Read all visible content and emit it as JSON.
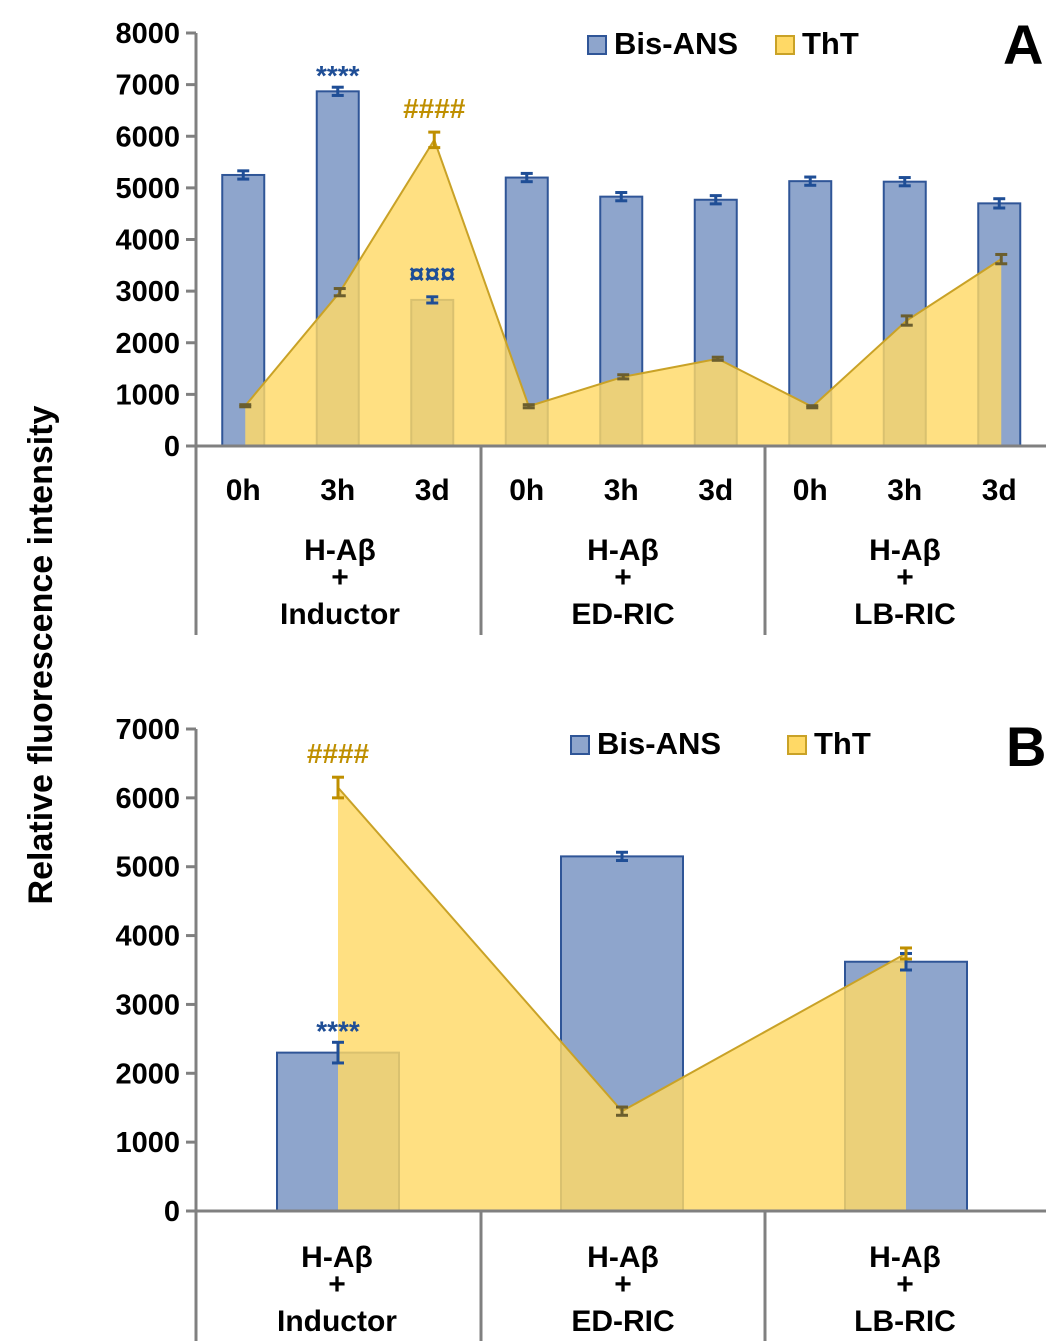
{
  "colors": {
    "bis_ans": "#8EA5CC",
    "bis_ans_edge": "#2F5597",
    "tht": "#FFD966",
    "tht_edge": "#C9A227",
    "overlap": "#8E8E80",
    "err_blue": "#1F4E96",
    "err_gold": "#BF8F00",
    "axis": "#808080"
  },
  "chart_data": [
    {
      "panel_label": "A",
      "type": "bar",
      "ylabel": "Relative fluorescence intensity",
      "ylim": [
        0,
        8000
      ],
      "yticks": [
        "0",
        "1000",
        "2000",
        "3000",
        "4000",
        "5000",
        "6000",
        "7000",
        "8000"
      ],
      "legend": [
        "Bis-ANS",
        "ThT"
      ],
      "legend_position": "top-right",
      "time_labels": [
        "0h",
        "3h",
        "3d",
        "0h",
        "3h",
        "3d",
        "0h",
        "3h",
        "3d"
      ],
      "groups": [
        {
          "line1": "H-Aβ",
          "line2": "+",
          "line3": "Inductor"
        },
        {
          "line1": "H-Aβ",
          "line2": "+",
          "line3": "ED-RIC"
        },
        {
          "line1": "H-Aβ",
          "line2": "+",
          "line3": "LB-RIC"
        }
      ],
      "series": [
        {
          "name": "Bis-ANS",
          "kind": "bar",
          "values": [
            5250,
            6870,
            2830,
            5200,
            4830,
            4770,
            5130,
            5120,
            4700
          ],
          "errors": [
            80,
            80,
            60,
            80,
            80,
            80,
            80,
            80,
            90
          ]
        },
        {
          "name": "ThT",
          "kind": "area",
          "values": [
            780,
            2980,
            5930,
            770,
            1340,
            1690,
            760,
            2430,
            3620
          ],
          "errors": [
            20,
            70,
            150,
            30,
            40,
            30,
            20,
            90,
            90
          ]
        }
      ],
      "annotations": [
        {
          "text": "****",
          "index": 1,
          "series": "Bis-ANS"
        },
        {
          "text": "####",
          "index": 2,
          "series": "ThT"
        },
        {
          "text": "¤¤¤",
          "index": 2,
          "series": "Bis-ANS"
        }
      ]
    },
    {
      "panel_label": "B",
      "type": "bar",
      "ylabel": "Relative fluorescence intensity",
      "ylim": [
        0,
        7000
      ],
      "yticks": [
        "0",
        "1000",
        "2000",
        "3000",
        "4000",
        "5000",
        "6000",
        "7000"
      ],
      "legend": [
        "Bis-ANS",
        "ThT"
      ],
      "legend_position": "top-right",
      "groups": [
        {
          "line1": "H-Aβ",
          "line2": "+",
          "line3": "Inductor"
        },
        {
          "line1": "H-Aβ",
          "line2": "+",
          "line3": "ED-RIC"
        },
        {
          "line1": "H-Aβ",
          "line2": "+",
          "line3": "LB-RIC"
        }
      ],
      "series": [
        {
          "name": "Bis-ANS",
          "kind": "bar",
          "values": [
            2300,
            5150,
            3620
          ],
          "errors": [
            150,
            60,
            120
          ]
        },
        {
          "name": "ThT",
          "kind": "area",
          "values": [
            6150,
            1450,
            3740
          ],
          "errors": [
            150,
            60,
            80
          ]
        }
      ],
      "annotations": [
        {
          "text": "****",
          "index": 0,
          "series": "Bis-ANS"
        },
        {
          "text": "####",
          "index": 0,
          "series": "ThT"
        }
      ]
    }
  ]
}
